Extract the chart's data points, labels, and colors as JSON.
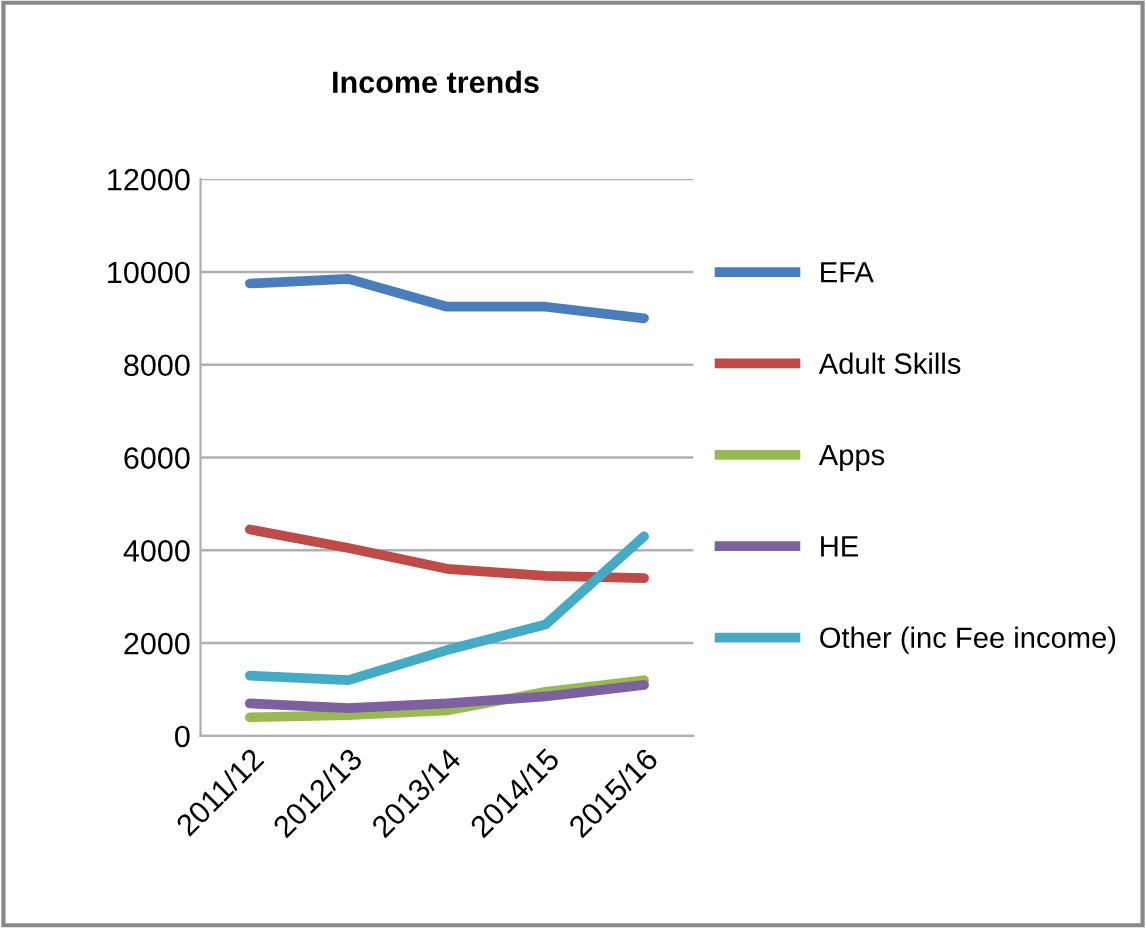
{
  "chart_data": {
    "type": "line",
    "title": "Income trends",
    "categories": [
      "2011/12",
      "2012/13",
      "2013/14",
      "2014/15",
      "2015/16"
    ],
    "series": [
      {
        "name": "EFA",
        "color": "#4a7ebb",
        "values": [
          9750,
          9850,
          9250,
          9250,
          9000
        ]
      },
      {
        "name": "Adult Skills",
        "color": "#be4b48",
        "values": [
          4450,
          4050,
          3600,
          3450,
          3400
        ]
      },
      {
        "name": "Apps",
        "color": "#98b954",
        "values": [
          400,
          450,
          550,
          950,
          1200
        ]
      },
      {
        "name": "HE",
        "color": "#7d60a0",
        "values": [
          700,
          600,
          700,
          850,
          1100
        ]
      },
      {
        "name": "Other (inc Fee income)",
        "color": "#46aac5",
        "values": [
          1300,
          1200,
          1850,
          2400,
          4300
        ]
      }
    ],
    "ylim": [
      0,
      12000
    ],
    "yticks": [
      0,
      2000,
      4000,
      6000,
      8000,
      10000,
      12000
    ],
    "grid": "y",
    "legend": "right",
    "marker": "none",
    "line_style": "solid"
  }
}
